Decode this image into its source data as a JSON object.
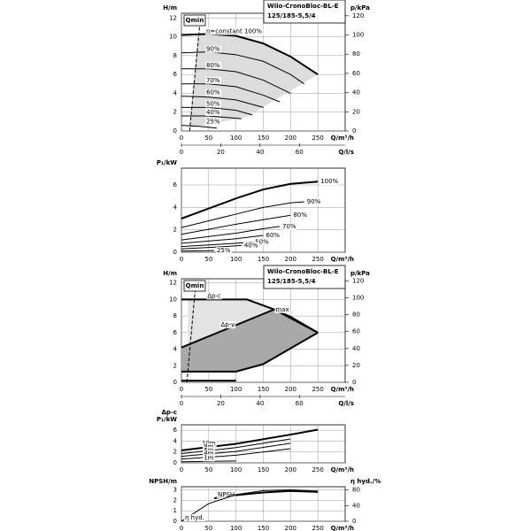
{
  "chart_data": [
    {
      "type": "line",
      "title": "Wilo-CronoBloc-BL-E",
      "subtitle": "125/185-5,5/4",
      "annotation": "Qmin",
      "ylabel": "H/m",
      "y2label": "p/kPa",
      "xlabel": "Q/m³/h",
      "x2label": "Q/l/s",
      "xlim": [
        0,
        300
      ],
      "xticks": [
        0,
        50,
        100,
        150,
        200,
        250
      ],
      "ylim": [
        0,
        12.5
      ],
      "yticks": [
        0,
        2,
        4,
        6,
        8,
        10,
        12
      ],
      "y2lim": [
        0,
        122.6
      ],
      "y2ticks": [
        0,
        20,
        40,
        60,
        80,
        100,
        120
      ],
      "x2lim": [
        0,
        83.3
      ],
      "x2ticks": [
        0,
        20,
        40,
        60
      ],
      "grid": true,
      "series": [
        {
          "type": "area",
          "fill": "#dcdcdc",
          "x": [
            30,
            50,
            100,
            150,
            200,
            250,
            120,
            15
          ],
          "values": [
            10.2,
            10.3,
            10.1,
            9.3,
            7.9,
            6.0,
            1.5,
            0.3
          ]
        },
        {
          "color": "#000000",
          "dash": true,
          "x": [
            15,
            34
          ],
          "values": [
            0,
            11.5
          ]
        },
        {
          "name": "n=constant 100%",
          "color": "#000000",
          "linewidth": 2,
          "x": [
            0,
            50,
            100,
            150,
            200,
            250
          ],
          "values": [
            10.2,
            10.3,
            10.1,
            9.3,
            7.9,
            6.0
          ]
        },
        {
          "name": "90%",
          "color": "#000000",
          "x": [
            0,
            50,
            100,
            150,
            200,
            225
          ],
          "values": [
            8.3,
            8.4,
            8.1,
            7.4,
            6.0,
            5.0
          ]
        },
        {
          "name": "80%",
          "color": "#000000",
          "x": [
            0,
            50,
            100,
            150,
            200
          ],
          "values": [
            6.6,
            6.6,
            6.3,
            5.4,
            4.0
          ]
        },
        {
          "name": "70%",
          "color": "#000000",
          "x": [
            0,
            50,
            100,
            150,
            180
          ],
          "values": [
            5.0,
            5.0,
            4.7,
            3.8,
            3.1
          ]
        },
        {
          "name": "60%",
          "color": "#000000",
          "x": [
            0,
            50,
            100,
            150
          ],
          "values": [
            3.7,
            3.6,
            3.3,
            2.5
          ]
        },
        {
          "name": "50%",
          "color": "#000000",
          "x": [
            0,
            50,
            100,
            130
          ],
          "values": [
            2.5,
            2.5,
            2.2,
            1.7
          ]
        },
        {
          "name": "40%",
          "color": "#000000",
          "x": [
            0,
            50,
            110
          ],
          "values": [
            1.6,
            1.6,
            1.3
          ]
        },
        {
          "name": "25%",
          "color": "#000000",
          "x": [
            0,
            30,
            65
          ],
          "values": [
            0.6,
            0.5,
            0.3
          ]
        }
      ]
    },
    {
      "type": "line",
      "ylabel": "P₁/kW",
      "xlabel": "Q/m³/h",
      "xlim": [
        0,
        300
      ],
      "xticks": [
        0,
        50,
        100,
        150,
        200,
        250
      ],
      "ylim": [
        0,
        7.5
      ],
      "yticks": [
        0,
        2,
        4,
        6
      ],
      "grid": true,
      "series": [
        {
          "name": "100%",
          "color": "#000000",
          "linewidth": 2,
          "x": [
            0,
            50,
            100,
            150,
            200,
            250
          ],
          "values": [
            3.0,
            3.9,
            4.8,
            5.6,
            6.1,
            6.3
          ]
        },
        {
          "name": "90%",
          "color": "#000000",
          "x": [
            0,
            50,
            100,
            150,
            200,
            225
          ],
          "values": [
            2.2,
            2.8,
            3.4,
            4.0,
            4.4,
            4.5
          ]
        },
        {
          "name": "80%",
          "color": "#000000",
          "x": [
            0,
            100,
            150,
            200
          ],
          "values": [
            1.6,
            2.5,
            2.9,
            3.3
          ]
        },
        {
          "name": "70%",
          "color": "#000000",
          "x": [
            0,
            100,
            150,
            180
          ],
          "values": [
            1.1,
            1.7,
            2.1,
            2.3
          ]
        },
        {
          "name": "60%",
          "color": "#000000",
          "x": [
            0,
            100,
            150
          ],
          "values": [
            0.8,
            1.2,
            1.5
          ]
        },
        {
          "name": "50%",
          "color": "#000000",
          "x": [
            0,
            100,
            130
          ],
          "values": [
            0.5,
            0.8,
            0.9
          ]
        },
        {
          "name": "40%",
          "color": "#000000",
          "x": [
            0,
            80,
            110
          ],
          "values": [
            0.3,
            0.5,
            0.6
          ]
        },
        {
          "name": "25%",
          "color": "#000000",
          "x": [
            0,
            60
          ],
          "values": [
            0.1,
            0.15
          ]
        }
      ]
    },
    {
      "type": "line",
      "title": "Wilo-CronoBloc-BL-E",
      "subtitle": "125/185-5,5/4",
      "annotation": "Qmin",
      "ylabel": "H/m",
      "y2label": "p/kPa",
      "xlabel": "Q/m³/h",
      "x2label": "Q/l/s",
      "xlim": [
        0,
        300
      ],
      "xticks": [
        0,
        50,
        100,
        150,
        200,
        250
      ],
      "ylim": [
        0,
        12.5
      ],
      "yticks": [
        0,
        2,
        4,
        6,
        8,
        10,
        12
      ],
      "y2lim": [
        0,
        122.6
      ],
      "y2ticks": [
        0,
        20,
        40,
        60,
        80,
        100,
        120
      ],
      "x2lim": [
        0,
        83.3
      ],
      "x2ticks": [
        0,
        20,
        40,
        60
      ],
      "grid": true,
      "series": [
        {
          "type": "area",
          "fill": "#e3e3e3",
          "x": [
            12,
            120,
            170,
            250,
            150,
            100,
            12
          ],
          "values": [
            10,
            10,
            8.8,
            6.0,
            2.2,
            1.3,
            1.3
          ]
        },
        {
          "type": "area",
          "fill": "#a9a9a9",
          "x": [
            0,
            170,
            250,
            150,
            100,
            0
          ],
          "values": [
            4.2,
            8.8,
            6.0,
            2.2,
            1.3,
            1.3
          ]
        },
        {
          "color": "#000000",
          "dash": true,
          "x": [
            10,
            25
          ],
          "values": [
            0,
            11
          ]
        },
        {
          "name": "Δp-c",
          "color": "#000000",
          "linewidth": 2,
          "x": [
            0,
            120,
            170,
            250
          ],
          "values": [
            10,
            10,
            8.8,
            6.0
          ]
        },
        {
          "name": "Δp-v",
          "color": "#000000",
          "linewidth": 2,
          "x": [
            0,
            170
          ],
          "values": [
            4.2,
            8.8
          ]
        },
        {
          "name": "max",
          "color": "#000000",
          "linewidth": 2,
          "x": [
            170,
            200,
            250
          ],
          "values": [
            8.8,
            7.9,
            6.0
          ]
        },
        {
          "color": "#000000",
          "linewidth": 2,
          "x": [
            0,
            100,
            150,
            250
          ],
          "values": [
            1.3,
            1.3,
            2.2,
            6.0
          ]
        },
        {
          "color": "#000000",
          "linewidth": 2,
          "x": [
            0,
            100
          ],
          "values": [
            0.2,
            0.2
          ]
        }
      ]
    },
    {
      "type": "line",
      "mode_label": "Δp-c",
      "ylabel": "P₁/kW",
      "xlabel": "Q/m³/h",
      "xlim": [
        0,
        300
      ],
      "xticks": [
        0,
        50,
        100,
        150,
        200,
        250
      ],
      "ylim": [
        0,
        7
      ],
      "yticks": [
        0,
        2,
        4,
        6
      ],
      "grid": true,
      "series": [
        {
          "name": "10m",
          "color": "#000000",
          "linewidth": 2,
          "x": [
            0,
            100,
            200,
            250
          ],
          "values": [
            2.3,
            3.5,
            5.2,
            6.1
          ]
        },
        {
          "name": "8m",
          "color": "#000000",
          "x": [
            0,
            100,
            200
          ],
          "values": [
            1.7,
            2.8,
            4.4
          ]
        },
        {
          "name": "6m",
          "color": "#000000",
          "x": [
            0,
            100,
            200
          ],
          "values": [
            1.2,
            2.1,
            3.6
          ]
        },
        {
          "name": "4m",
          "color": "#000000",
          "x": [
            0,
            100,
            200
          ],
          "values": [
            0.7,
            1.4,
            2.6
          ]
        },
        {
          "name": "1m",
          "color": "#000000",
          "x": [
            0,
            100
          ],
          "values": [
            0.2,
            0.35
          ]
        }
      ]
    },
    {
      "type": "line",
      "ylabel": "NPSH/m",
      "y2label": "η hyd./%",
      "xlabel": "Q/m³/h",
      "xlim": [
        0,
        300
      ],
      "xticks": [
        0,
        50,
        100,
        150,
        200,
        250
      ],
      "ylim": [
        0,
        3.3
      ],
      "yticks": [
        0,
        1,
        2,
        3
      ],
      "y2lim": [
        0,
        88
      ],
      "y2ticks": [
        0,
        40,
        80
      ],
      "grid": true,
      "series": [
        {
          "name": "NPSH",
          "color": "#000000",
          "linewidth": 2,
          "x": [
            60,
            100,
            150,
            200,
            250
          ],
          "values": [
            2.2,
            2.5,
            2.75,
            2.9,
            2.8
          ]
        },
        {
          "name": "η hyd.",
          "color": "#000000",
          "axis": "y2",
          "x": [
            0,
            50,
            100,
            150,
            200,
            250
          ],
          "values": [
            0,
            45,
            68,
            78,
            80,
            77
          ]
        }
      ]
    }
  ]
}
